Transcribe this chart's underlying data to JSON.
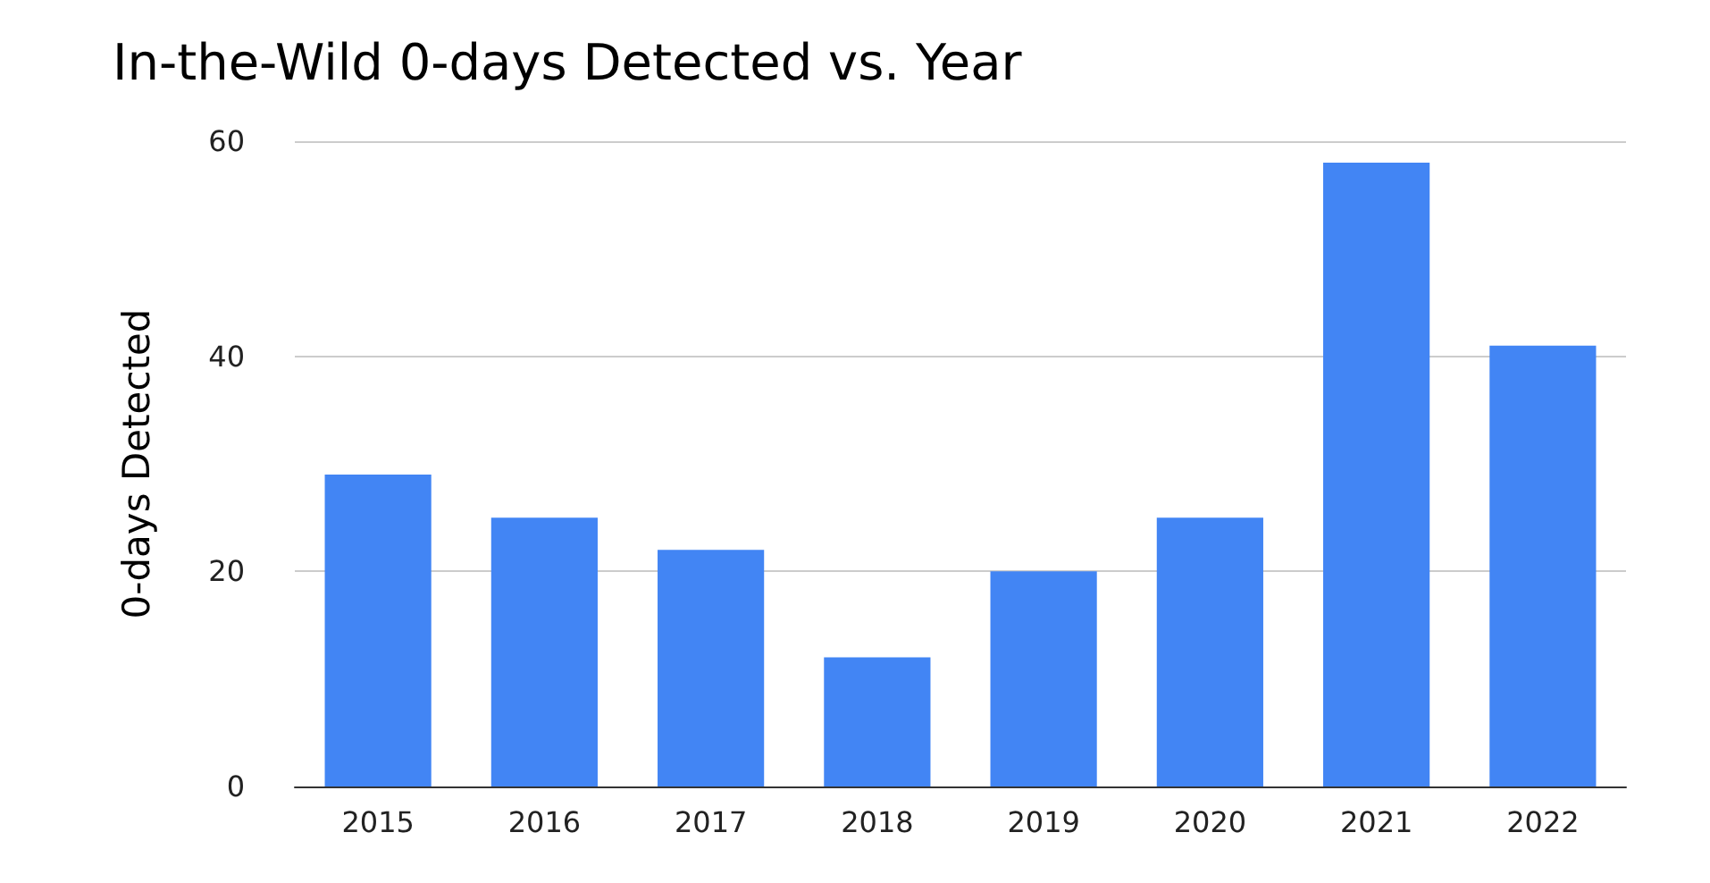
{
  "chart_data": {
    "type": "bar",
    "title": "In-the-Wild 0-days Detected vs. Year",
    "ylabel": "0-days Detected",
    "categories": [
      "2015",
      "2016",
      "2017",
      "2018",
      "2019",
      "2020",
      "2021",
      "2022"
    ],
    "values": [
      29,
      25,
      22,
      12,
      20,
      25,
      58,
      41
    ],
    "color": "#4285f4",
    "ylim": [
      0,
      60
    ],
    "yticks": [
      0,
      20,
      40,
      60
    ],
    "grid": "y"
  }
}
